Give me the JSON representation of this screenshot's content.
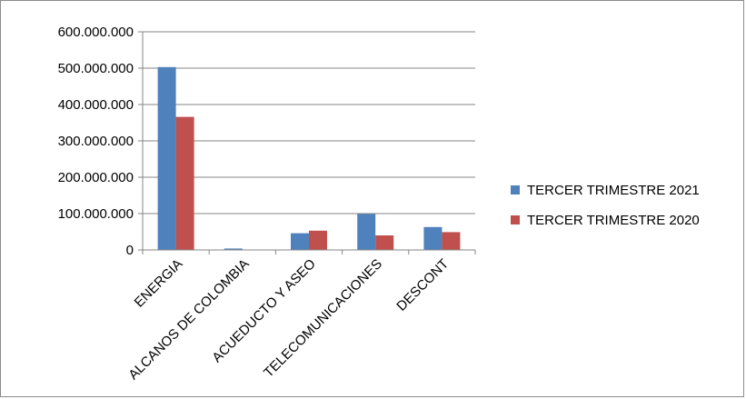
{
  "chart_data": {
    "type": "bar",
    "categories": [
      "ENERGIA",
      "ALCANOS DE COLOMBIA",
      "ACUEDUCTO Y ASEO",
      "TELECOMUNICACIONES",
      "DESCONT"
    ],
    "series": [
      {
        "name": "TERCER TRIMESTRE 2021",
        "color": "#4f81bd",
        "values": [
          503000000,
          4000000,
          46000000,
          99000000,
          63000000
        ]
      },
      {
        "name": "TERCER TRIMESTRE 2020",
        "color": "#c0504d",
        "values": [
          366000000,
          0,
          53000000,
          40000000,
          49000000
        ]
      }
    ],
    "ylim": [
      0,
      600000000
    ],
    "yticks": [
      {
        "value": 0,
        "label": "0"
      },
      {
        "value": 100000000,
        "label": "100.000.000"
      },
      {
        "value": 200000000,
        "label": "200.000.000"
      },
      {
        "value": 300000000,
        "label": "300.000.000"
      },
      {
        "value": 400000000,
        "label": "400.000.000"
      },
      {
        "value": 500000000,
        "label": "500.000.000"
      },
      {
        "value": 600000000,
        "label": "600.000.000"
      }
    ],
    "grid": true,
    "legend_position": "right"
  }
}
